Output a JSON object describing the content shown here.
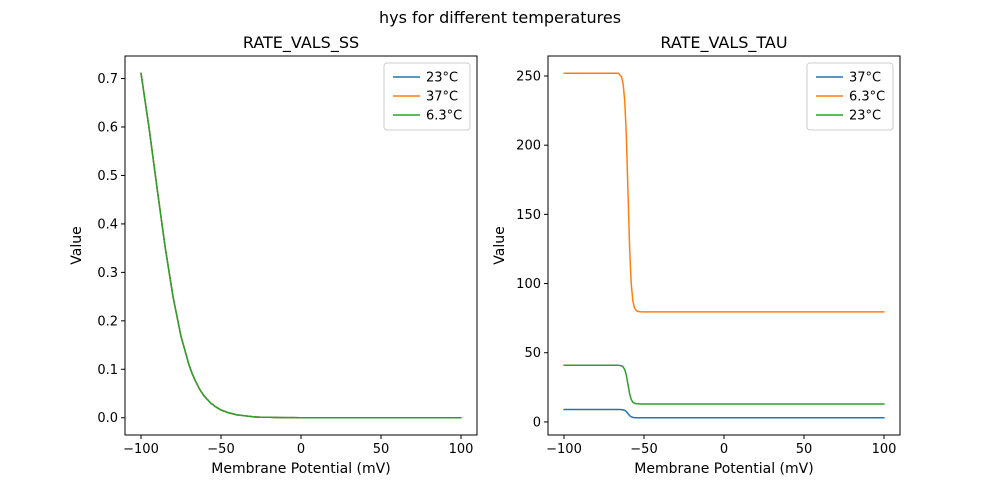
{
  "figure": {
    "suptitle": "hys for different temperatures"
  },
  "chart_data": [
    {
      "id": "rate_vals_ss",
      "type": "line",
      "title": "RATE_VALS_SS",
      "xlabel": "Membrane Potential (mV)",
      "ylabel": "Value",
      "xlim": [
        -110,
        110
      ],
      "ylim": [
        -0.0356,
        0.7465
      ],
      "xticks": [
        -100,
        -50,
        0,
        50,
        100
      ],
      "xtick_labels": [
        "−100",
        "−50",
        "0",
        "50",
        "100"
      ],
      "yticks": [
        0.0,
        0.1,
        0.2,
        0.3,
        0.4,
        0.5,
        0.6,
        0.7
      ],
      "ytick_labels": [
        "0.0",
        "0.1",
        "0.2",
        "0.3",
        "0.4",
        "0.5",
        "0.6",
        "0.7"
      ],
      "grid": false,
      "x": [
        -100,
        -95,
        -90,
        -85,
        -80,
        -75,
        -70,
        -68,
        -66,
        -64,
        -63,
        -62,
        -61,
        -60,
        -59,
        -58,
        -57,
        -56,
        -55,
        -54,
        -52,
        -50,
        -45,
        -40,
        -35,
        -30,
        -25,
        -20,
        -15,
        -10,
        -5,
        0,
        10,
        20,
        30,
        40,
        50,
        60,
        70,
        80,
        90,
        100
      ],
      "series": [
        {
          "name": "23°C",
          "color": "#1f77b4",
          "values": [
            0.711,
            0.599,
            0.475,
            0.354,
            0.25,
            0.168,
            0.109,
            0.091,
            0.076,
            0.063,
            0.057,
            0.052,
            0.047,
            0.043,
            0.039,
            0.036,
            0.032,
            0.029,
            0.027,
            0.024,
            0.02,
            0.016,
            0.01,
            0.006,
            0.004,
            0.002,
            0.001,
            0.001,
            0.0005,
            0.0003,
            0.0002,
            0.0001,
            0,
            0,
            0,
            0,
            0,
            0,
            0,
            0,
            0,
            0
          ]
        },
        {
          "name": "37°C",
          "color": "#ff7f0e",
          "values": [
            0.711,
            0.599,
            0.475,
            0.354,
            0.25,
            0.168,
            0.109,
            0.091,
            0.076,
            0.063,
            0.057,
            0.052,
            0.047,
            0.043,
            0.039,
            0.036,
            0.032,
            0.029,
            0.027,
            0.024,
            0.02,
            0.016,
            0.01,
            0.006,
            0.004,
            0.002,
            0.001,
            0.001,
            0.0005,
            0.0003,
            0.0002,
            0.0001,
            0,
            0,
            0,
            0,
            0,
            0,
            0,
            0,
            0,
            0
          ]
        },
        {
          "name": "6.3°C",
          "color": "#2ca02c",
          "values": [
            0.711,
            0.599,
            0.475,
            0.354,
            0.25,
            0.168,
            0.109,
            0.091,
            0.076,
            0.063,
            0.057,
            0.052,
            0.047,
            0.043,
            0.039,
            0.036,
            0.032,
            0.029,
            0.027,
            0.024,
            0.02,
            0.016,
            0.01,
            0.006,
            0.004,
            0.002,
            0.001,
            0.001,
            0.0005,
            0.0003,
            0.0002,
            0.0001,
            0,
            0,
            0,
            0,
            0,
            0,
            0,
            0,
            0,
            0
          ]
        }
      ],
      "legend": {
        "position": "upper right",
        "entries": [
          {
            "label": "23°C",
            "color": "#1f77b4"
          },
          {
            "label": "37°C",
            "color": "#ff7f0e"
          },
          {
            "label": "6.3°C",
            "color": "#2ca02c"
          }
        ]
      }
    },
    {
      "id": "rate_vals_tau",
      "type": "line",
      "title": "RATE_VALS_TAU",
      "xlabel": "Membrane Potential (mV)",
      "ylabel": "Value",
      "xlim": [
        -110,
        110
      ],
      "ylim": [
        -9.45,
        264.45
      ],
      "xticks": [
        -100,
        -50,
        0,
        50,
        100
      ],
      "xtick_labels": [
        "−100",
        "−50",
        "0",
        "50",
        "100"
      ],
      "yticks": [
        0,
        50,
        100,
        150,
        200,
        250
      ],
      "ytick_labels": [
        "0",
        "50",
        "100",
        "150",
        "200",
        "250"
      ],
      "grid": false,
      "x": [
        -100,
        -95,
        -90,
        -85,
        -80,
        -75,
        -70,
        -68,
        -66,
        -64,
        -63,
        -62,
        -61,
        -60,
        -59,
        -58,
        -57,
        -56,
        -55,
        -54,
        -52,
        -50,
        -45,
        -40,
        -35,
        -30,
        -25,
        -20,
        -15,
        -10,
        -5,
        0,
        10,
        20,
        30,
        40,
        50,
        60,
        70,
        80,
        90,
        100
      ],
      "series": [
        {
          "name": "37°C",
          "color": "#1f77b4",
          "values": [
            9,
            9,
            9,
            9,
            9,
            9,
            9,
            9,
            9,
            8.9,
            8.7,
            8.3,
            7.4,
            6,
            4.6,
            3.7,
            3.3,
            3.1,
            3,
            3,
            3,
            3,
            3,
            3,
            3,
            3,
            3,
            3,
            3,
            3,
            3,
            3,
            3,
            3,
            3,
            3,
            3,
            3,
            3,
            3,
            3,
            3
          ]
        },
        {
          "name": "6.3°C",
          "color": "#ff7f0e",
          "values": [
            252,
            252,
            252,
            252,
            252,
            252,
            252,
            252,
            252,
            249.4,
            243.8,
            231.4,
            205.6,
            165.8,
            125.9,
            100.1,
            87.7,
            82.6,
            80.7,
            79.9,
            79.6,
            79.5,
            79.5,
            79.5,
            79.5,
            79.5,
            79.5,
            79.5,
            79.5,
            79.5,
            79.5,
            79.5,
            79.5,
            79.5,
            79.5,
            79.5,
            79.5,
            79.5,
            79.5,
            79.5,
            79.5,
            79.5
          ]
        },
        {
          "name": "23°C",
          "color": "#2ca02c",
          "values": [
            41,
            41,
            41,
            41,
            41,
            41,
            41,
            41,
            41,
            40.5,
            39.7,
            37.7,
            33.5,
            27,
            20.5,
            16.3,
            14.3,
            13.5,
            13.2,
            13.1,
            13,
            13,
            13,
            13,
            13,
            13,
            13,
            13,
            13,
            13,
            13,
            13,
            13,
            13,
            13,
            13,
            13,
            13,
            13,
            13,
            13,
            13
          ]
        }
      ],
      "legend": {
        "position": "upper right",
        "entries": [
          {
            "label": "37°C",
            "color": "#1f77b4"
          },
          {
            "label": "6.3°C",
            "color": "#ff7f0e"
          },
          {
            "label": "23°C",
            "color": "#2ca02c"
          }
        ]
      }
    }
  ]
}
